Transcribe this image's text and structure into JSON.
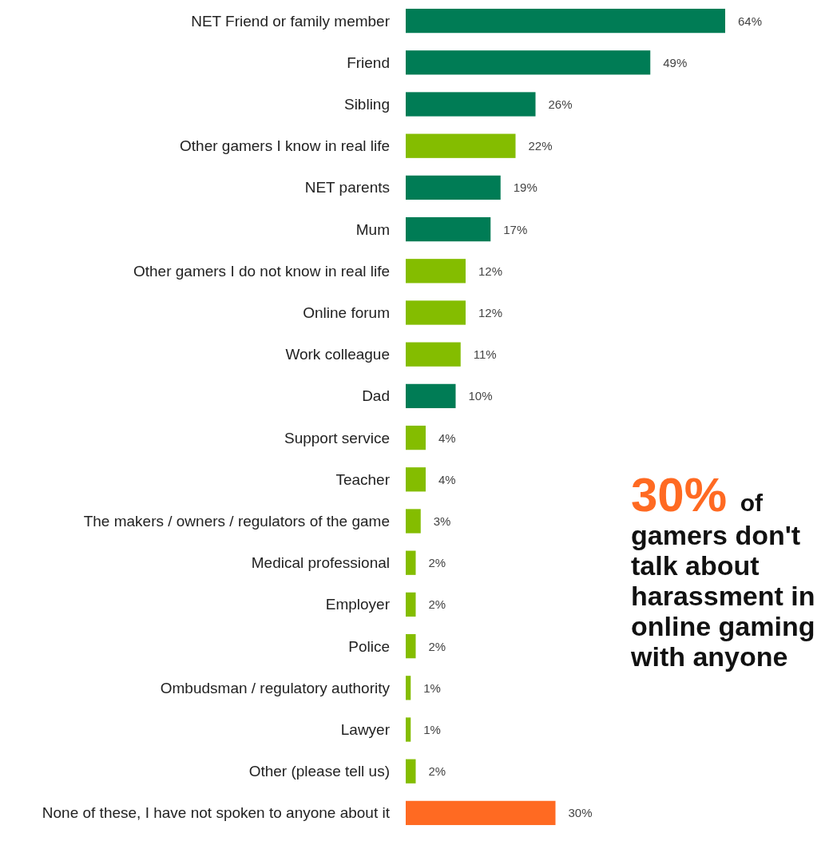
{
  "chart_data": {
    "type": "bar",
    "orientation": "horizontal",
    "categories": [
      "NET Friend or family member",
      "Friend",
      "Sibling",
      "Other gamers I know in real life",
      "NET parents",
      "Mum",
      "Other gamers I do not know in real life",
      "Online forum",
      "Work colleague",
      "Dad",
      "Support service",
      "Teacher",
      "The makers / owners / regulators of the game",
      "Medical professional",
      "Employer",
      "Police",
      "Ombudsman / regulatory authority",
      "Lawyer",
      "Other (please tell us)",
      "None of these, I have not spoken to anyone about it"
    ],
    "values": [
      64,
      49,
      26,
      22,
      19,
      17,
      12,
      12,
      11,
      10,
      4,
      4,
      3,
      2,
      2,
      2,
      1,
      1,
      2,
      30
    ],
    "value_labels": [
      "64%",
      "49%",
      "26%",
      "22%",
      "19%",
      "17%",
      "12%",
      "12%",
      "11%",
      "10%",
      "4%",
      "4%",
      "3%",
      "2%",
      "2%",
      "2%",
      "1%",
      "1%",
      "2%",
      "30%"
    ],
    "colors": [
      "#007c55",
      "#007c55",
      "#007c55",
      "#84bd00",
      "#007c55",
      "#007c55",
      "#84bd00",
      "#84bd00",
      "#84bd00",
      "#007c55",
      "#84bd00",
      "#84bd00",
      "#84bd00",
      "#84bd00",
      "#84bd00",
      "#84bd00",
      "#84bd00",
      "#84bd00",
      "#84bd00",
      "#ff6a22"
    ],
    "annotations": [
      "30% of gamers don't talk about harassment in online gaming with anyone"
    ]
  }
}
